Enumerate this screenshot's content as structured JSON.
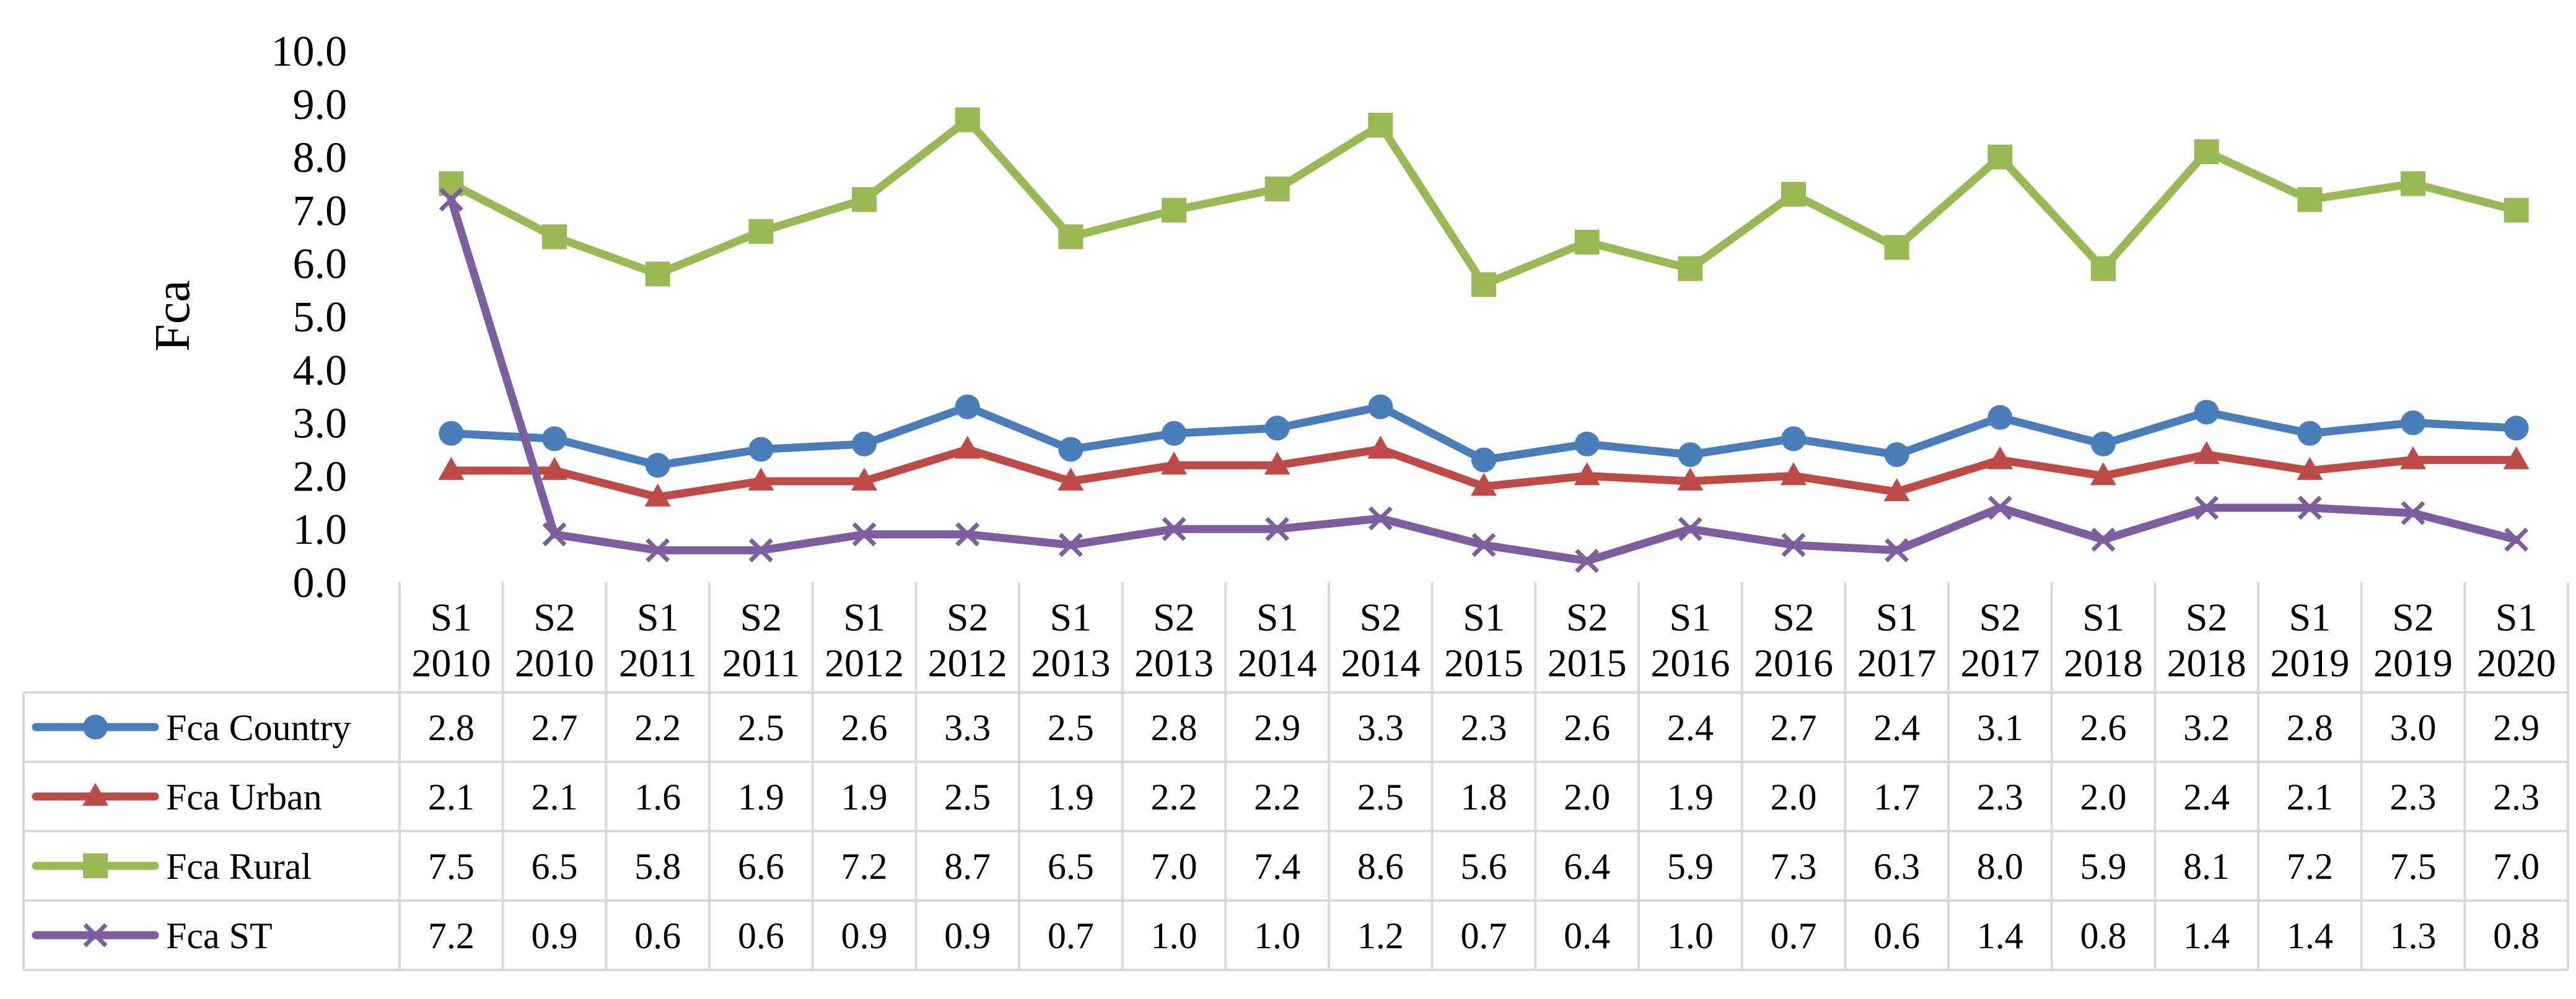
{
  "chart_data": {
    "type": "line",
    "title": "",
    "xlabel": "",
    "ylabel": "Fca",
    "ylim": [
      0,
      10
    ],
    "yticks": [
      "0.0",
      "1.0",
      "2.0",
      "3.0",
      "4.0",
      "5.0",
      "6.0",
      "7.0",
      "8.0",
      "9.0",
      "10.0"
    ],
    "grid": false,
    "legend": "data-table-left",
    "categories": [
      [
        "S1",
        "2010"
      ],
      [
        "S2",
        "2010"
      ],
      [
        "S1",
        "2011"
      ],
      [
        "S2",
        "2011"
      ],
      [
        "S1",
        "2012"
      ],
      [
        "S2",
        "2012"
      ],
      [
        "S1",
        "2013"
      ],
      [
        "S2",
        "2013"
      ],
      [
        "S1",
        "2014"
      ],
      [
        "S2",
        "2014"
      ],
      [
        "S1",
        "2015"
      ],
      [
        "S2",
        "2015"
      ],
      [
        "S1",
        "2016"
      ],
      [
        "S2",
        "2016"
      ],
      [
        "S1",
        "2017"
      ],
      [
        "S2",
        "2017"
      ],
      [
        "S1",
        "2018"
      ],
      [
        "S2",
        "2018"
      ],
      [
        "S1",
        "2019"
      ],
      [
        "S2",
        "2019"
      ],
      [
        "S1",
        "2020"
      ]
    ],
    "series": [
      {
        "name": "Fca Country",
        "color": "#4a7ebb",
        "marker": "circle",
        "values": [
          2.8,
          2.7,
          2.2,
          2.5,
          2.6,
          3.3,
          2.5,
          2.8,
          2.9,
          3.3,
          2.3,
          2.6,
          2.4,
          2.7,
          2.4,
          3.1,
          2.6,
          3.2,
          2.8,
          3.0,
          2.9
        ],
        "labels": [
          "2.8",
          "2.7",
          "2.2",
          "2.5",
          "2.6",
          "3.3",
          "2.5",
          "2.8",
          "2.9",
          "3.3",
          "2.3",
          "2.6",
          "2.4",
          "2.7",
          "2.4",
          "3.1",
          "2.6",
          "3.2",
          "2.8",
          "3.0",
          "2.9"
        ]
      },
      {
        "name": "Fca Urban",
        "color": "#be4b48",
        "marker": "triangle",
        "values": [
          2.1,
          2.1,
          1.6,
          1.9,
          1.9,
          2.5,
          1.9,
          2.2,
          2.2,
          2.5,
          1.8,
          2.0,
          1.9,
          2.0,
          1.7,
          2.3,
          2.0,
          2.4,
          2.1,
          2.3,
          2.3
        ],
        "labels": [
          "2.1",
          "2.1",
          "1.6",
          "1.9",
          "1.9",
          "2.5",
          "1.9",
          "2.2",
          "2.2",
          "2.5",
          "1.8",
          "2.0",
          "1.9",
          "2.0",
          "1.7",
          "2.3",
          "2.0",
          "2.4",
          "2.1",
          "2.3",
          "2.3"
        ]
      },
      {
        "name": "Fca Rural",
        "color": "#98b954",
        "marker": "square",
        "values": [
          7.5,
          6.5,
          5.8,
          6.6,
          7.2,
          8.7,
          6.5,
          7.0,
          7.4,
          8.6,
          5.6,
          6.4,
          5.9,
          7.3,
          6.3,
          8.0,
          5.9,
          8.1,
          7.2,
          7.5,
          7.0
        ],
        "labels": [
          "7.5",
          "6.5",
          "5.8",
          "6.6",
          "7.2",
          "8.7",
          "6.5",
          "7.0",
          "7.4",
          "8.6",
          "5.6",
          "6.4",
          "5.9",
          "7.3",
          "6.3",
          "8.0",
          "5.9",
          "8.1",
          "7.2",
          "7.5",
          "7.0"
        ]
      },
      {
        "name": "Fca ST",
        "color": "#7d5fa0",
        "marker": "x",
        "values": [
          7.2,
          0.9,
          0.6,
          0.6,
          0.9,
          0.9,
          0.7,
          1.0,
          1.0,
          1.2,
          0.7,
          0.4,
          1.0,
          0.7,
          0.6,
          1.4,
          0.8,
          1.4,
          1.4,
          1.3,
          0.8
        ],
        "labels": [
          "7.2",
          "0.9",
          "0.6",
          "0.6",
          "0.9",
          "0.9",
          "0.7",
          "1.0",
          "1.0",
          "1.2",
          "0.7",
          "0.4",
          "1.0",
          "0.7",
          "0.6",
          "1.4",
          "0.8",
          "1.4",
          "1.4",
          "1.3",
          "0.8"
        ]
      }
    ]
  }
}
